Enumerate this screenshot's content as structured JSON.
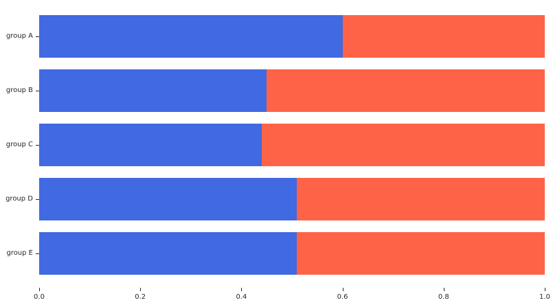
{
  "figure": {
    "background": "#ffffff",
    "text_color": "#262626"
  },
  "chart_data": {
    "type": "bar",
    "orientation": "horizontal",
    "stacked": true,
    "title": "",
    "xlabel": "",
    "ylabel": "",
    "categories": [
      "group A",
      "group B",
      "group C",
      "group D",
      "group E"
    ],
    "series": [
      {
        "name": "blue",
        "color": "#4169E1",
        "values": [
          0.6,
          0.45,
          0.44,
          0.51,
          0.51
        ]
      },
      {
        "name": "tomato",
        "color": "#FF6347",
        "values": [
          0.4,
          0.55,
          0.56,
          0.49,
          0.49
        ]
      }
    ],
    "xlim": [
      0.0,
      1.0
    ],
    "xticks": [
      "0.0",
      "0.2",
      "0.4",
      "0.6",
      "0.8",
      "1.0"
    ],
    "grid": false,
    "legend": "none",
    "spines": "none"
  }
}
